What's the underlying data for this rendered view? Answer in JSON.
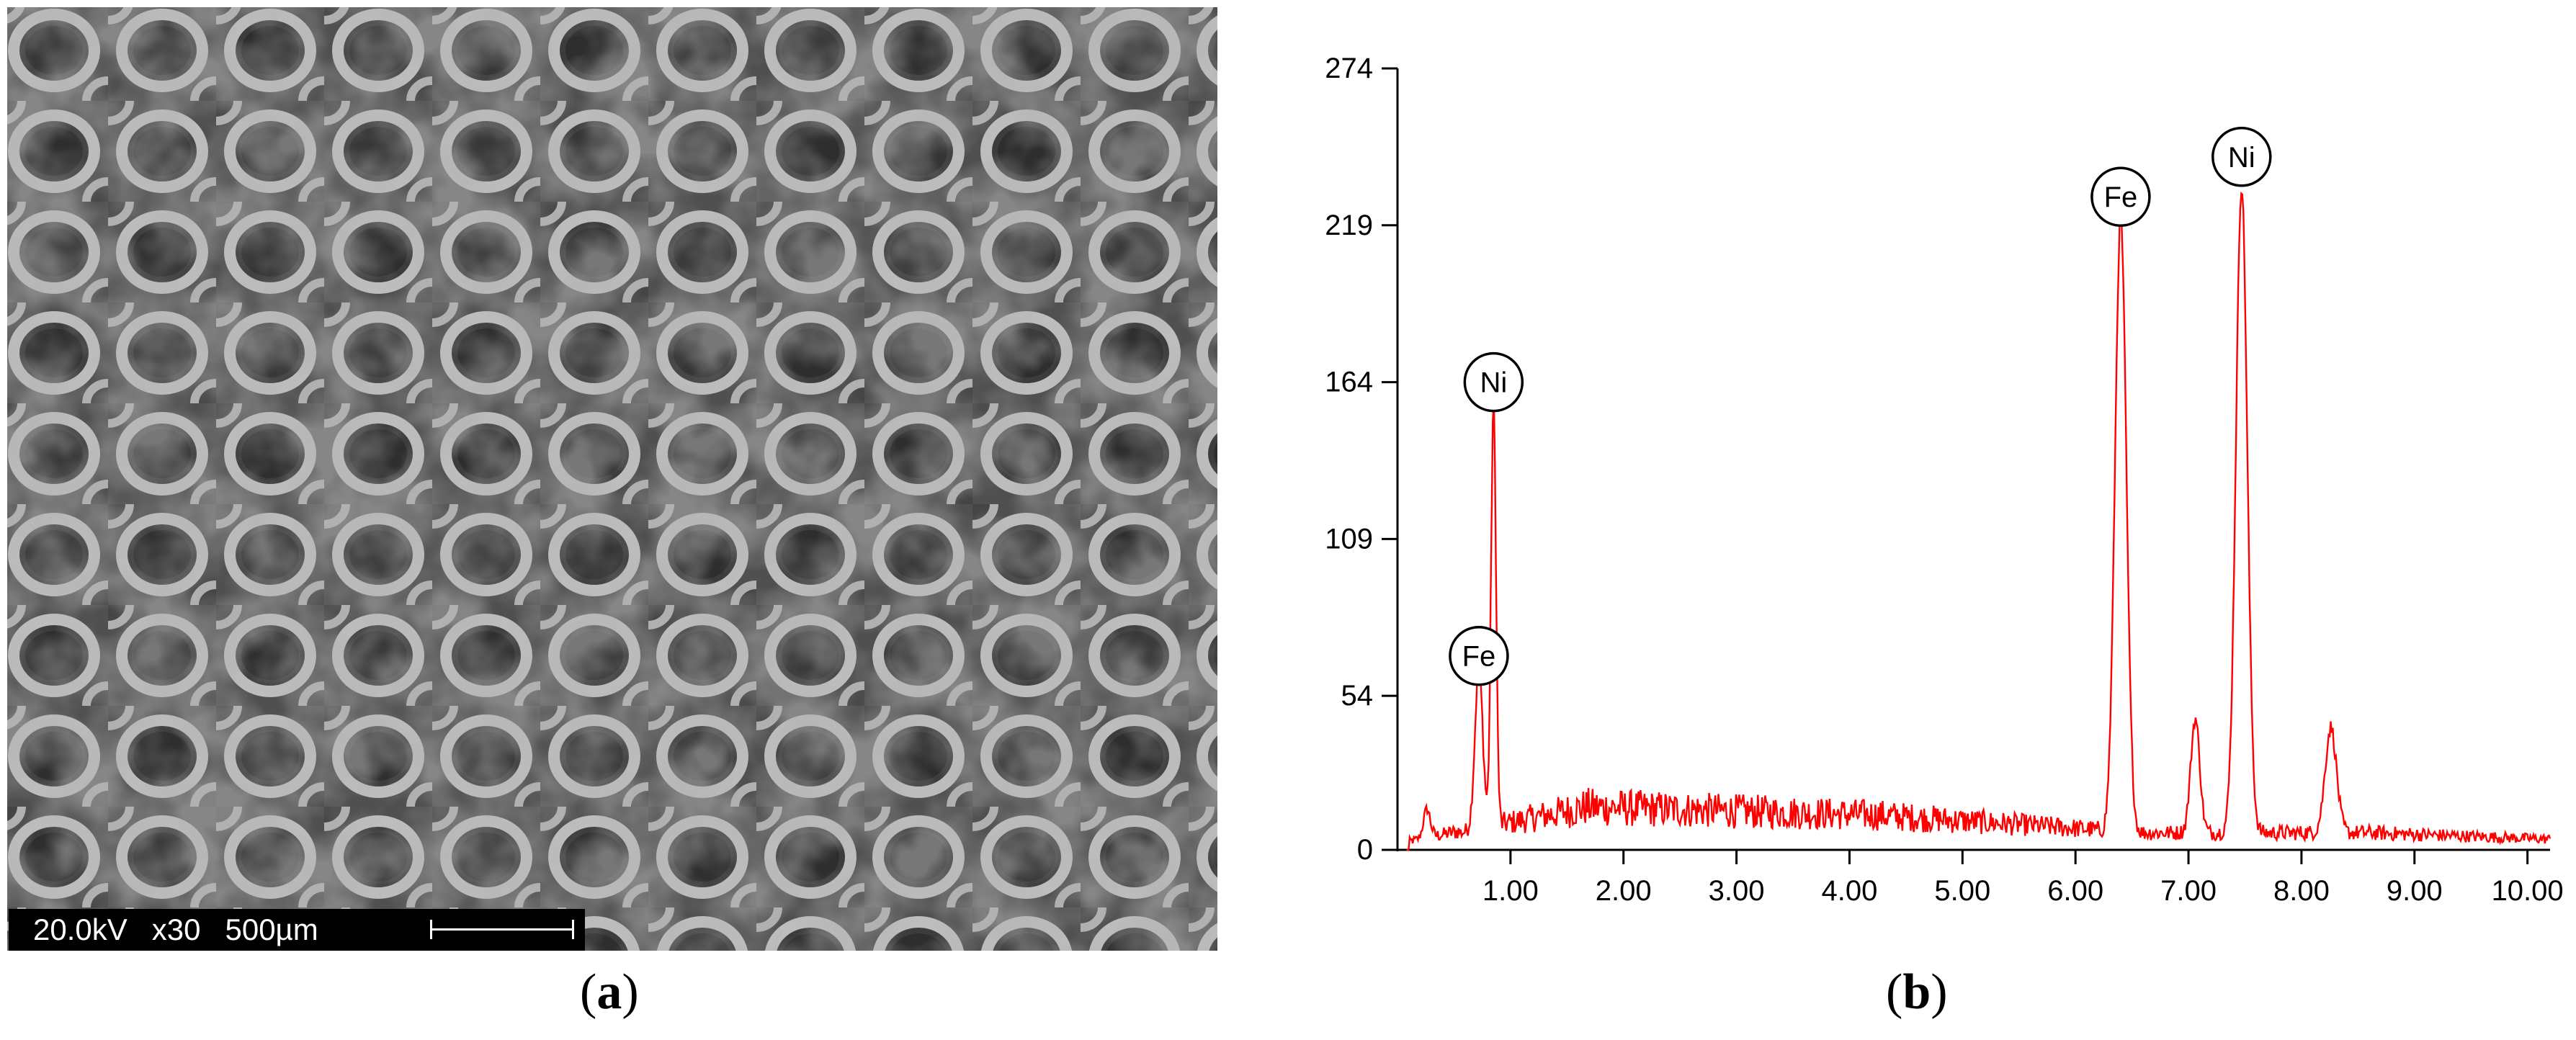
{
  "panels": {
    "a": {
      "label_open": "(",
      "label_letter": "a",
      "label_close": ")"
    },
    "b": {
      "label_open": "(",
      "label_letter": "b",
      "label_close": ")"
    }
  },
  "sem": {
    "voltage": "20.0kV",
    "magnification": "x30",
    "scale": "500µm"
  },
  "chart_data": {
    "type": "line",
    "title": "",
    "xlabel": "",
    "ylabel": "",
    "xlim": [
      0,
      10.2
    ],
    "ylim": [
      0,
      274
    ],
    "x_ticks": [
      "1.00",
      "2.00",
      "3.00",
      "4.00",
      "5.00",
      "6.00",
      "7.00",
      "8.00",
      "9.00",
      "10.00"
    ],
    "y_ticks": [
      "0",
      "54",
      "109",
      "164",
      "219",
      "274"
    ],
    "grid": false,
    "legend": "none",
    "line_color": "#ff0000",
    "peaks": [
      {
        "x": 0.26,
        "y": 10,
        "w": 0.03
      },
      {
        "x": 0.72,
        "y": 56,
        "w": 0.035
      },
      {
        "x": 0.85,
        "y": 148,
        "w": 0.022
      },
      {
        "x": 6.4,
        "y": 215,
        "w": 0.05
      },
      {
        "x": 7.06,
        "y": 40,
        "w": 0.04
      },
      {
        "x": 7.47,
        "y": 227,
        "w": 0.05
      },
      {
        "x": 8.26,
        "y": 37,
        "w": 0.05
      }
    ],
    "annotations": [
      {
        "text": "Ni",
        "x": 0.85,
        "y": 164
      },
      {
        "text": "Fe",
        "x": 0.72,
        "y": 68
      },
      {
        "text": "Fe",
        "x": 6.4,
        "y": 229
      },
      {
        "text": "Ni",
        "x": 7.47,
        "y": 243
      }
    ]
  }
}
